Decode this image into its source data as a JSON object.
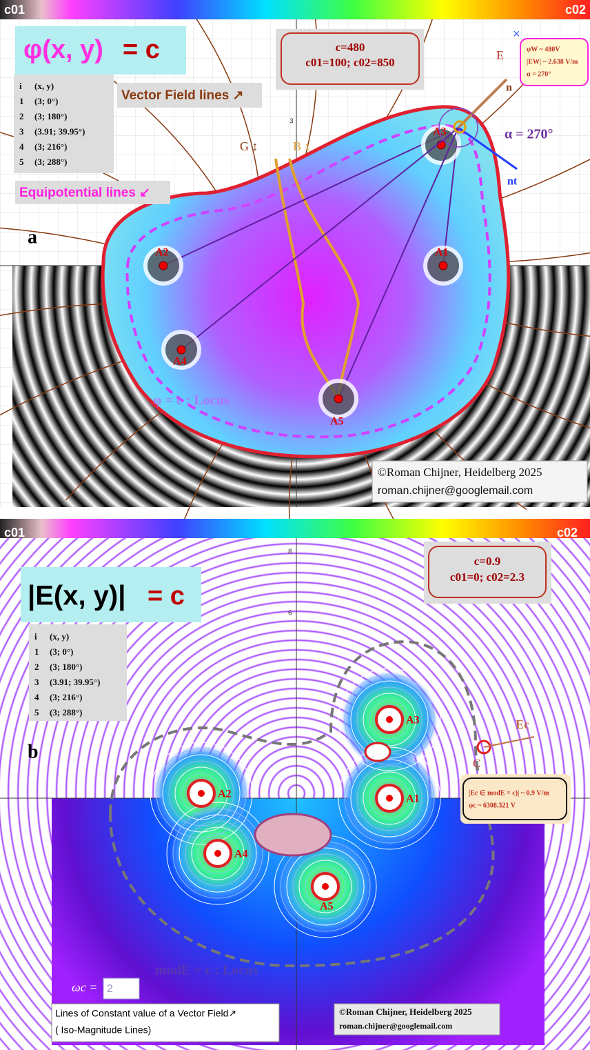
{
  "panel_a": {
    "colorbar": {
      "left": "c01",
      "right": "c02"
    },
    "axis_tick": "3",
    "formula": {
      "lhs": "φ(x, y)",
      "rhs": "= c"
    },
    "params": [
      "c=480",
      "c01=100; c02=850"
    ],
    "table": {
      "header": [
        "i",
        "(x, y)"
      ],
      "rows": [
        [
          "1",
          "(3; 0°)"
        ],
        [
          "2",
          "(3; 180°)"
        ],
        [
          "3",
          "(3.91; 39.95°)"
        ],
        [
          "4",
          "(3; 216°)"
        ],
        [
          "5",
          "(3; 288°)"
        ]
      ]
    },
    "vector_field_label": "Vector Field lines ↗",
    "equipotential_label": "Equipotential lines ↙",
    "panel_letter": "a",
    "g_label": "G ↕",
    "b_label": "B ↕",
    "alpha_label": "α = 270°",
    "locus_label": "φ = c : Locus",
    "e_label": "E",
    "n_label": "n",
    "nt_label": "nt",
    "points": [
      "A1",
      "A2",
      "A3",
      "A4",
      "A5"
    ],
    "info": [
      "φW ~ 480V",
      "|EW| ~ 2.638 V/m",
      "α = 270°"
    ],
    "copyright": [
      "©Roman Chijner, Heidelberg 2025",
      "roman.chijner@googlemail.com"
    ]
  },
  "panel_b": {
    "colorbar": {
      "left": "c01",
      "right": "c02"
    },
    "axis_ticks": [
      "8",
      "6"
    ],
    "formula": {
      "lhs": "|E(x, y)|",
      "rhs": "= c"
    },
    "params": [
      "c=0.9",
      "c01=0; c02=2.3"
    ],
    "table": {
      "header": [
        "i",
        "(x, y)"
      ],
      "rows": [
        [
          "1",
          "(3; 0°)"
        ],
        [
          "2",
          "(3; 180°)"
        ],
        [
          "3",
          "(3.91; 39.95°)"
        ],
        [
          "4",
          "(3; 216°)"
        ],
        [
          "5",
          "(3; 288°)"
        ]
      ]
    },
    "panel_letter": "b",
    "points": [
      "A1",
      "A2",
      "A3",
      "A4",
      "A5"
    ],
    "ec_label": "Ec",
    "c_label": "C",
    "info": [
      "|Ec ∈ modE = c)| ~ 0.9 V/m",
      "φc ~ 6308.321 V"
    ],
    "locus_label": "modE = c : Locus",
    "omega_label": "ωc =",
    "omega_value": "2",
    "caption": [
      "Lines of Constant value of a Vector Field↗",
      "( Iso-Magnitude Lines)"
    ],
    "copyright": [
      "©Roman Chijner, Heidelberg 2025",
      "roman.chijner@googlemail.com"
    ]
  }
}
